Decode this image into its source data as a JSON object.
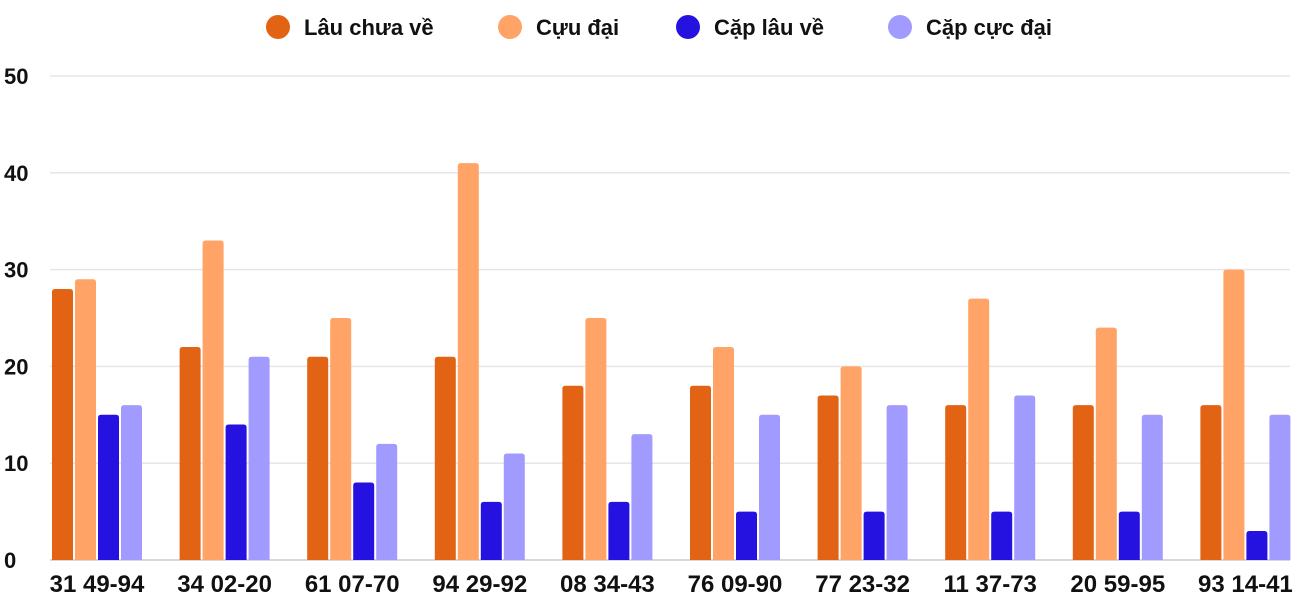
{
  "chart_data": {
    "type": "bar",
    "title": "",
    "xlabel": "",
    "ylabel": "",
    "ylim": [
      0,
      50
    ],
    "yticks": [
      0,
      10,
      20,
      30,
      40,
      50
    ],
    "grid": true,
    "legend_position": "top",
    "categories": [
      "31 49-94",
      "34 02-20",
      "61 07-70",
      "94 29-92",
      "08 34-43",
      "76 09-90",
      "77 23-32",
      "11 37-73",
      "20 59-95",
      "93 14-41"
    ],
    "series": [
      {
        "name": "Lâu chưa về",
        "color": "#e26313",
        "values": [
          28,
          22,
          21,
          21,
          18,
          18,
          17,
          16,
          16,
          16
        ]
      },
      {
        "name": "Cựu đại",
        "color": "#ffa366",
        "values": [
          29,
          33,
          25,
          41,
          25,
          22,
          20,
          27,
          24,
          30
        ]
      },
      {
        "name": "Cặp lâu về",
        "color": "#2612e0",
        "values": [
          15,
          14,
          8,
          6,
          6,
          5,
          5,
          5,
          5,
          3
        ]
      },
      {
        "name": "Cặp cực đại",
        "color": "#a29bff",
        "values": [
          16,
          21,
          12,
          11,
          13,
          15,
          16,
          17,
          15,
          15
        ]
      }
    ]
  }
}
